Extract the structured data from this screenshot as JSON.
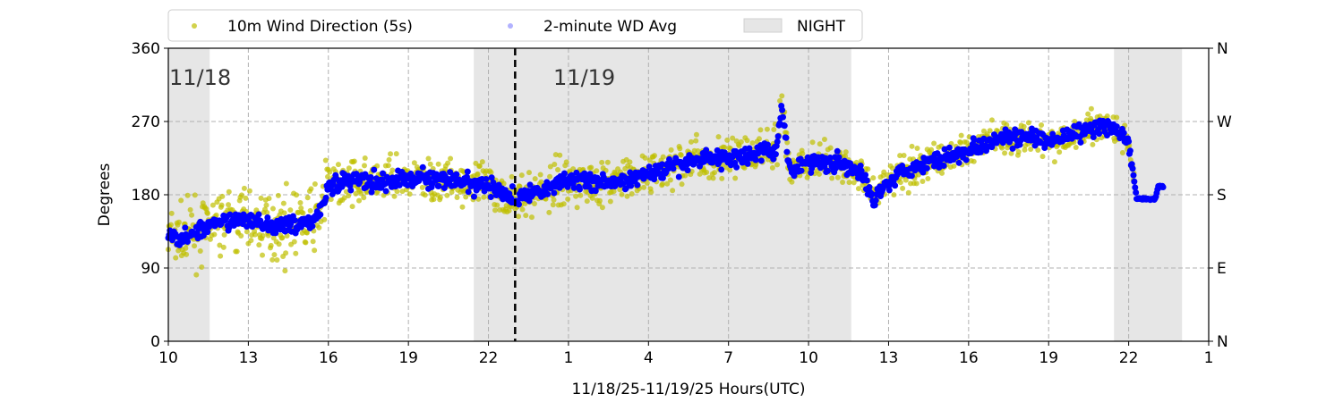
{
  "chart_data": {
    "type": "scatter",
    "xlabel": "11/18/25-11/19/25  Hours(UTC)",
    "ylabel": "Degrees",
    "xlim": [
      10,
      49
    ],
    "ylim": [
      0,
      360
    ],
    "x_unit": "hours since 00:00 UTC 11/18",
    "x_ticks": [
      10,
      13,
      16,
      19,
      22,
      25,
      28,
      31,
      34,
      37,
      40,
      43,
      46,
      49
    ],
    "x_tick_labels": [
      "10",
      "13",
      "16",
      "19",
      "22",
      "1",
      "4",
      "7",
      "10",
      "13",
      "16",
      "19",
      "22",
      "1"
    ],
    "y_ticks": [
      0,
      90,
      180,
      270,
      360
    ],
    "y_tick_labels": [
      "0",
      "90",
      "180",
      "270",
      "360"
    ],
    "y2_tick_labels": [
      "N",
      "E",
      "S",
      "W",
      "N"
    ],
    "grid": true,
    "legend": {
      "placement": "top-center-outside",
      "entries": [
        "10m Wind Direction (5s)",
        "2-minute WD Avg",
        "NIGHT"
      ]
    },
    "night_spans": [
      [
        10,
        11.55
      ],
      [
        21.45,
        35.6
      ],
      [
        45.45,
        48
      ]
    ],
    "date_divider": 23,
    "date_labels": [
      {
        "x": 10,
        "text": "11/18"
      },
      {
        "x": 24.4,
        "text": "11/19"
      }
    ],
    "colors": {
      "wind": "#bfbf00",
      "avg": "#0000ff",
      "night": "#e6e6e6"
    },
    "series": [
      {
        "name": "2-minute WD Avg",
        "x": [
          10,
          10.5,
          11,
          12,
          13,
          14,
          15,
          15.5,
          16,
          17,
          18,
          19,
          20,
          21,
          22,
          23,
          24,
          25,
          26,
          27,
          28,
          29,
          30,
          31,
          32,
          32.8,
          33,
          33.3,
          34,
          35,
          36,
          36.4,
          36.8,
          37.5,
          38,
          39,
          40,
          41,
          42,
          43,
          44,
          45,
          45.5,
          46,
          46.3,
          47,
          47.1,
          47.3
        ],
        "y": [
          130,
          125,
          135,
          145,
          150,
          140,
          145,
          150,
          190,
          200,
          195,
          200,
          200,
          195,
          190,
          175,
          185,
          200,
          195,
          195,
          205,
          215,
          225,
          225,
          230,
          235,
          290,
          210,
          220,
          220,
          205,
          175,
          190,
          210,
          215,
          225,
          235,
          250,
          250,
          245,
          255,
          265,
          260,
          245,
          175,
          175,
          190,
          190
        ]
      },
      {
        "name": "10m Wind Direction (5s)",
        "spread_deg": [
          [
            10,
            35
          ],
          [
            16,
            25
          ],
          [
            33,
            20
          ],
          [
            46,
            10
          ]
        ]
      }
    ]
  }
}
